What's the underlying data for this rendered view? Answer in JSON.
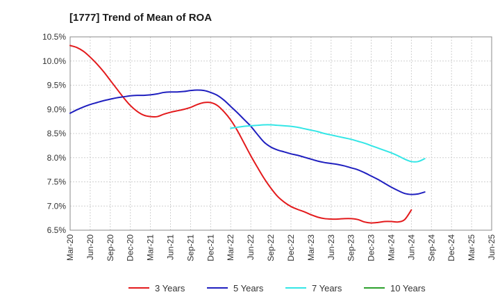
{
  "chart_data": {
    "type": "line",
    "title": "[1777]  Trend of Mean of ROA",
    "xlabel": "",
    "ylabel": "",
    "ylim": [
      6.5,
      10.5
    ],
    "y_ticks": [
      "10.5%",
      "10.0%",
      "9.5%",
      "9.0%",
      "8.5%",
      "8.0%",
      "7.5%",
      "7.0%",
      "6.5%"
    ],
    "y_tick_values": [
      10.5,
      10.0,
      9.5,
      9.0,
      8.5,
      8.0,
      7.5,
      7.0,
      6.5
    ],
    "x_ticks": [
      "Mar-20",
      "Jun-20",
      "Sep-20",
      "Dec-20",
      "Mar-21",
      "Jun-21",
      "Sep-21",
      "Dec-21",
      "Mar-22",
      "Jun-22",
      "Sep-22",
      "Dec-22",
      "Mar-23",
      "Jun-23",
      "Sep-23",
      "Dec-23",
      "Mar-24",
      "Jun-24",
      "Sep-24",
      "Dec-24",
      "Mar-25",
      "Jun-25"
    ],
    "grid": true,
    "legend_position": "bottom",
    "series": [
      {
        "name": "3 Years",
        "color": "#e31a1c",
        "start_index": 0,
        "values": [
          10.32,
          10.28,
          10.2,
          10.08,
          9.94,
          9.78,
          9.6,
          9.42,
          9.24,
          9.08,
          8.96,
          8.88,
          8.85,
          8.85,
          8.9,
          8.94,
          8.97,
          9.0,
          9.04,
          9.1,
          9.14,
          9.14,
          9.08,
          8.95,
          8.78,
          8.56,
          8.3,
          8.04,
          7.8,
          7.57,
          7.37,
          7.2,
          7.08,
          6.99,
          6.93,
          6.88,
          6.82,
          6.77,
          6.74,
          6.73,
          6.73,
          6.74,
          6.74,
          6.72,
          6.67,
          6.65,
          6.66,
          6.68,
          6.68,
          6.67,
          6.72,
          6.92
        ]
      },
      {
        "name": "5 Years",
        "color": "#1f1fbf",
        "start_index": 0,
        "values": [
          8.92,
          8.99,
          9.05,
          9.1,
          9.14,
          9.18,
          9.21,
          9.24,
          9.26,
          9.28,
          9.29,
          9.29,
          9.3,
          9.32,
          9.35,
          9.36,
          9.36,
          9.37,
          9.39,
          9.4,
          9.39,
          9.35,
          9.29,
          9.19,
          9.06,
          8.93,
          8.79,
          8.65,
          8.48,
          8.32,
          8.22,
          8.16,
          8.12,
          8.08,
          8.05,
          8.01,
          7.97,
          7.93,
          7.9,
          7.88,
          7.86,
          7.83,
          7.79,
          7.75,
          7.69,
          7.62,
          7.55,
          7.47,
          7.39,
          7.32,
          7.26,
          7.24,
          7.25,
          7.29
        ]
      },
      {
        "name": "7 Years",
        "color": "#33e6e6",
        "start_index": 24,
        "values": [
          8.61,
          8.63,
          8.65,
          8.66,
          8.67,
          8.68,
          8.68,
          8.67,
          8.66,
          8.65,
          8.63,
          8.6,
          8.57,
          8.54,
          8.5,
          8.47,
          8.44,
          8.41,
          8.38,
          8.34,
          8.3,
          8.25,
          8.2,
          8.15,
          8.1,
          8.04,
          7.97,
          7.92,
          7.92,
          7.98
        ]
      },
      {
        "name": "10 Years",
        "color": "#2ca02c",
        "start_index": 0,
        "values": []
      }
    ]
  }
}
